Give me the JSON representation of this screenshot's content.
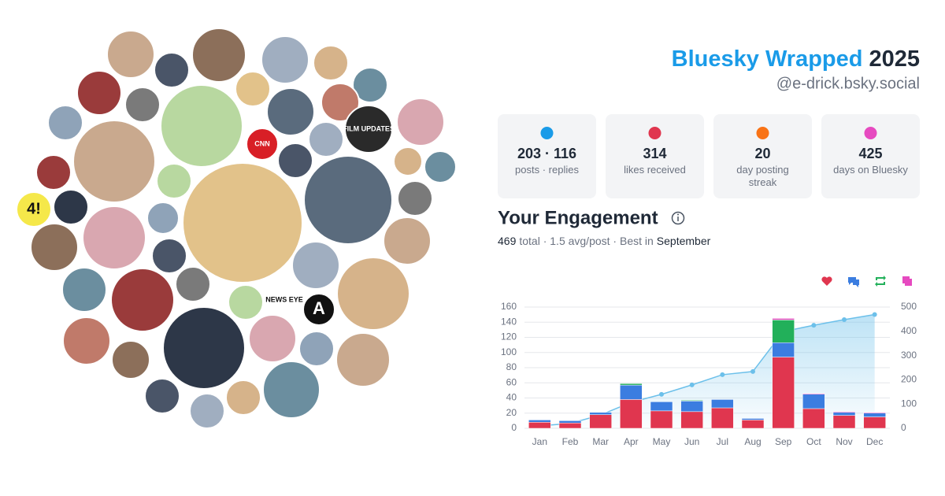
{
  "header": {
    "title": "Bluesky Wrapped",
    "year": "2025",
    "handle": "@e-drick.bsky.social"
  },
  "stats": [
    {
      "value": "203 · 116",
      "label": "posts · replies"
    },
    {
      "value": 314,
      "label": "likes received"
    },
    {
      "value": 20,
      "label": "day posting streak"
    },
    {
      "value": 425,
      "label": "days on Bluesky"
    }
  ],
  "engagement": {
    "title": "Your Engagement",
    "total": 469,
    "summary": "total · 1.5 avg/post · Best in",
    "best": "September"
  },
  "avatar_labels": [
    "CNN",
    "NEWS EYE",
    "FILM UPDATES",
    "4!",
    "A"
  ],
  "chart_data": {
    "type": "bar",
    "stacked": true,
    "categories": [
      "Jan",
      "Feb",
      "Mar",
      "Apr",
      "May",
      "Jun",
      "Jul",
      "Aug",
      "Sep",
      "Oct",
      "Nov",
      "Dec"
    ],
    "ylim": [
      0,
      160
    ],
    "yticks": [
      0,
      20,
      40,
      60,
      80,
      100,
      120,
      140,
      160
    ],
    "y2lim": [
      0,
      500
    ],
    "y2ticks": [
      0,
      100,
      200,
      300,
      400,
      500
    ],
    "grid": true,
    "series": [
      {
        "type": "bar",
        "color": "#e0364f",
        "values": [
          8,
          7,
          18,
          38,
          23,
          22,
          27,
          11,
          94,
          26,
          17,
          15
        ]
      },
      {
        "type": "bar",
        "color": "#3b7de0",
        "values": [
          3,
          3,
          3,
          19,
          12,
          14,
          11,
          2,
          19,
          19,
          4,
          5
        ]
      },
      {
        "type": "bar",
        "color": "#22b05a",
        "values": [
          0,
          0,
          0,
          2,
          0,
          1,
          0,
          0,
          30,
          0,
          0,
          0
        ]
      },
      {
        "type": "bar",
        "color": "#e64ac0",
        "values": [
          0,
          0,
          0,
          0,
          0,
          0,
          0,
          0,
          2,
          1,
          1,
          1
        ]
      },
      {
        "type": "line",
        "axis": "y2",
        "color": "#6cc0ea",
        "values": [
          10,
          20,
          55,
          107,
          140,
          179,
          221,
          234,
          399,
          425,
          448,
          469
        ]
      }
    ]
  }
}
